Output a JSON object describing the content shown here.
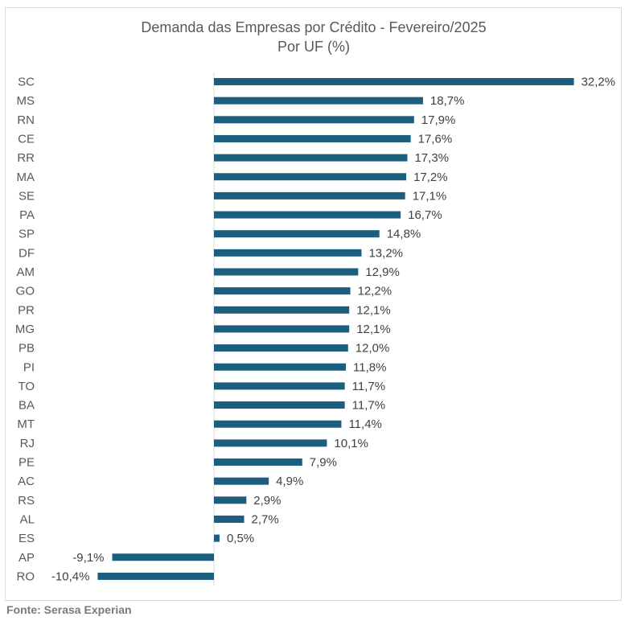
{
  "chart_data": {
    "type": "bar",
    "orientation": "horizontal",
    "title": "Demanda das Empresas por Crédito - Fevereiro/2025",
    "subtitle": "Por UF (%)",
    "categories": [
      "SC",
      "MS",
      "RN",
      "CE",
      "RR",
      "MA",
      "SE",
      "PA",
      "SP",
      "DF",
      "AM",
      "GO",
      "PR",
      "MG",
      "PB",
      "PI",
      "TO",
      "BA",
      "MT",
      "RJ",
      "PE",
      "AC",
      "RS",
      "AL",
      "ES",
      "AP",
      "RO"
    ],
    "values": [
      32.2,
      18.7,
      17.9,
      17.6,
      17.3,
      17.2,
      17.1,
      16.7,
      14.8,
      13.2,
      12.9,
      12.2,
      12.1,
      12.1,
      12.0,
      11.8,
      11.7,
      11.7,
      11.4,
      10.1,
      7.9,
      4.9,
      2.9,
      2.7,
      0.5,
      -9.1,
      -10.4
    ],
    "value_labels": [
      "32,2%",
      "18,7%",
      "17,9%",
      "17,6%",
      "17,3%",
      "17,2%",
      "17,1%",
      "16,7%",
      "14,8%",
      "13,2%",
      "12,9%",
      "12,2%",
      "12,1%",
      "12,1%",
      "12,0%",
      "11,8%",
      "11,7%",
      "11,7%",
      "11,4%",
      "10,1%",
      "7,9%",
      "4,9%",
      "2,9%",
      "2,7%",
      "0,5%",
      "-9,1%",
      "-10,4%"
    ],
    "xlabel": "",
    "ylabel": "",
    "grid": false,
    "legend": "none",
    "bar_color": "#1b5e7e"
  },
  "source": "Fonte: Serasa Experian"
}
